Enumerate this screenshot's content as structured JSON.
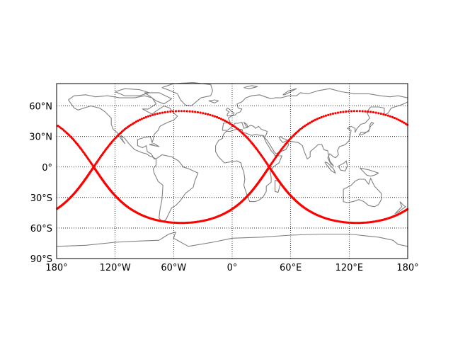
{
  "chart_data": {
    "type": "scatter",
    "title": "",
    "projection": "equirectangular",
    "xlim": [
      -180,
      180
    ],
    "ylim": [
      -90,
      90
    ],
    "grid": true,
    "x_ticks": [
      {
        "value": -180,
        "label": "180°"
      },
      {
        "value": -120,
        "label": "120°W"
      },
      {
        "value": -60,
        "label": "60°W"
      },
      {
        "value": 0,
        "label": "0°"
      },
      {
        "value": 60,
        "label": "60°E"
      },
      {
        "value": 120,
        "label": "120°E"
      },
      {
        "value": 180,
        "label": "180°"
      }
    ],
    "y_ticks": [
      {
        "value": 60,
        "label": "60°N"
      },
      {
        "value": 30,
        "label": "30°N"
      },
      {
        "value": 0,
        "label": "0°"
      },
      {
        "value": -30,
        "label": "30°S"
      },
      {
        "value": -60,
        "label": "60°S"
      },
      {
        "value": -90,
        "label": "90°S"
      }
    ],
    "series": [
      {
        "color": "#ff0000",
        "marker": "dot",
        "curve": "ground-track-sinusoid",
        "inclination_deg": 55,
        "ascending_node_lon": [
          -142,
          38
        ],
        "lon_range": [
          -180,
          180
        ]
      }
    ],
    "coastline_color": "#808080"
  }
}
